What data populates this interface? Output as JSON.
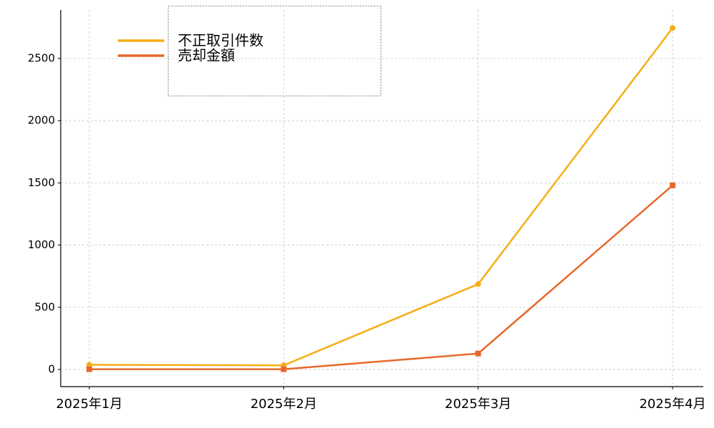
{
  "chart_data": {
    "type": "line",
    "categories": [
      "2025年1月",
      "2025年2月",
      "2025年3月",
      "2025年4月"
    ],
    "series": [
      {
        "name": "不正取引件数",
        "color": "#f5ae14",
        "marker": "circle",
        "values": [
          38,
          33,
          686,
          2745
        ]
      },
      {
        "name": "売却金額",
        "color": "#e8682a",
        "marker": "square",
        "values": [
          2,
          2,
          128,
          1480
        ]
      }
    ],
    "ylim": [
      -138,
      2890
    ],
    "yticks": [
      0,
      500,
      1000,
      1500,
      2000,
      2500
    ],
    "grid": true,
    "legend": "upper left"
  }
}
